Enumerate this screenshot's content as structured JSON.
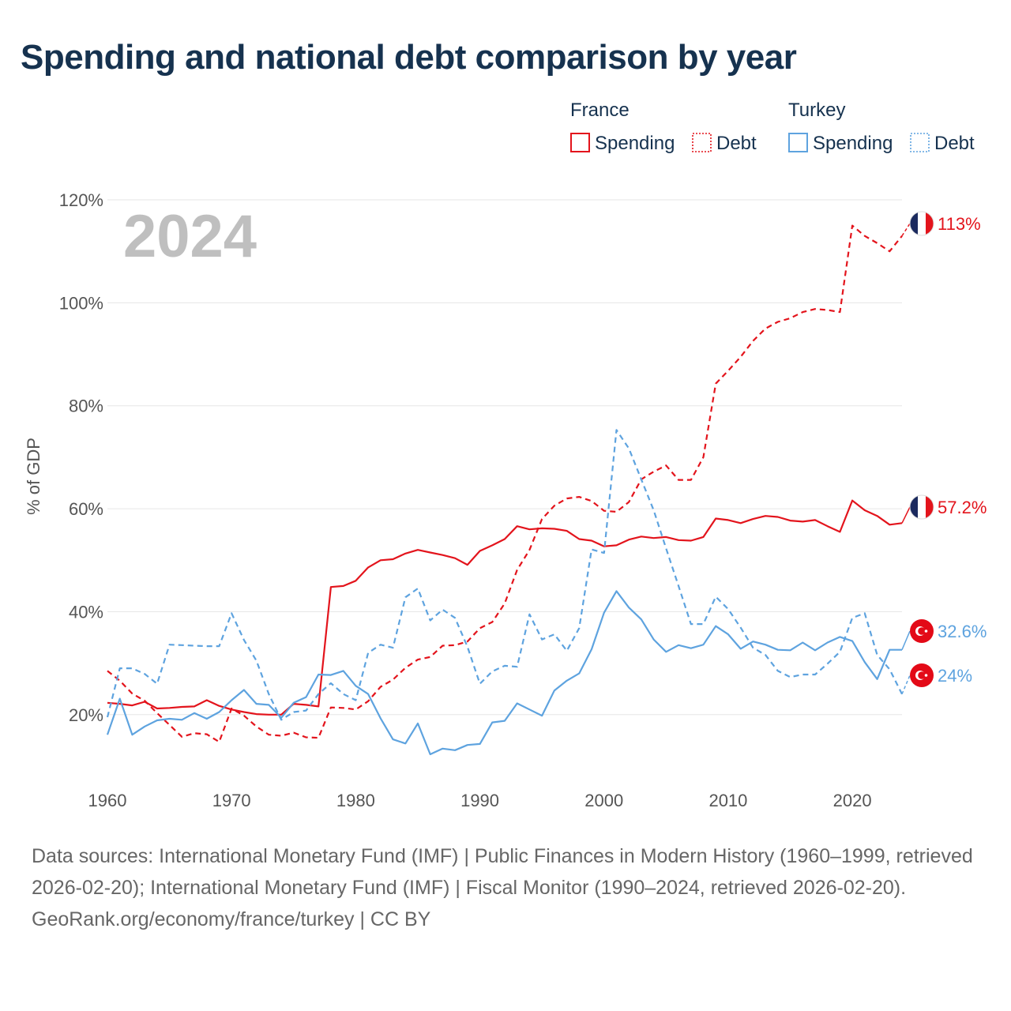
{
  "title": "Spending and national debt comparison by year",
  "colors": {
    "france": "#e3141c",
    "turkey": "#5ea3df",
    "title": "#16324f",
    "grid": "#e6e6e6",
    "axis_text": "#555555",
    "year_watermark": "#bfbfbf"
  },
  "legend": {
    "groups": [
      {
        "name": "France",
        "items": [
          "Spending",
          "Debt"
        ]
      },
      {
        "name": "Turkey",
        "items": [
          "Spending",
          "Debt"
        ]
      }
    ]
  },
  "year_label": "2024",
  "end_labels": {
    "france_debt": "113%",
    "france_spending": "57.2%",
    "turkey_spending": "32.6%",
    "turkey_debt": "24%"
  },
  "footer": {
    "sources": "Data sources: International Monetary Fund (IMF) | Public Finances in Modern History (1960–1999, retrieved 2026-02-20); International Monetary Fund (IMF) | Fiscal Monitor (1990–2024, retrieved 2026-02-20).",
    "credit": "GeoRank.org/economy/france/turkey | CC BY"
  },
  "chart_data": {
    "type": "line",
    "title": "Spending and national debt comparison by year",
    "ylabel": "% of GDP",
    "xlabel": "",
    "xlim": [
      1960,
      2024
    ],
    "ylim": [
      8,
      122
    ],
    "xticks": [
      1960,
      1970,
      1980,
      1990,
      2000,
      2010,
      2020
    ],
    "xtick_labels": [
      "1960",
      "1970",
      "1980",
      "1990",
      "2000",
      "2010",
      "2020"
    ],
    "yticks": [
      20,
      40,
      60,
      80,
      100,
      120
    ],
    "ytick_labels": [
      "20%",
      "40%",
      "60%",
      "80%",
      "100%",
      "120%"
    ],
    "grid": true,
    "legend_position": "top-right",
    "x_start": 1960,
    "series": [
      {
        "name": "France Spending",
        "country": "France",
        "dashed": false,
        "values": [
          22.3,
          22.1,
          21.8,
          22.5,
          21.2,
          21.3,
          21.5,
          21.6,
          22.8,
          21.7,
          21.0,
          20.5,
          20.1,
          20.0,
          20.0,
          22.1,
          21.9,
          21.6,
          44.8,
          45.0,
          46.0,
          48.6,
          50.0,
          50.2,
          51.3,
          52.0,
          51.5,
          51.0,
          50.4,
          49.1,
          51.8,
          52.9,
          54.1,
          56.6,
          56.0,
          56.2,
          56.1,
          55.7,
          54.1,
          53.8,
          52.7,
          52.9,
          54.0,
          54.6,
          54.3,
          54.5,
          53.9,
          53.8,
          54.5,
          58.1,
          57.8,
          57.2,
          58.0,
          58.6,
          58.4,
          57.7,
          57.5,
          57.8,
          56.6,
          55.5,
          61.6,
          59.7,
          58.6,
          56.9,
          57.2
        ]
      },
      {
        "name": "France Debt",
        "country": "France",
        "dashed": true,
        "values": [
          28.5,
          26.6,
          24.1,
          22.7,
          20.3,
          18.0,
          15.7,
          16.4,
          16.2,
          14.7,
          21.2,
          19.8,
          17.7,
          16.1,
          15.9,
          16.5,
          15.6,
          15.5,
          21.4,
          21.3,
          21.0,
          22.6,
          25.4,
          26.8,
          29.1,
          30.7,
          31.2,
          33.4,
          33.5,
          34.2,
          36.8,
          38.0,
          41.6,
          48.1,
          52.0,
          58.0,
          60.6,
          62.0,
          62.3,
          61.5,
          59.6,
          59.4,
          61.3,
          65.7,
          67.2,
          68.4,
          65.6,
          65.6,
          70.0,
          84.3,
          86.8,
          89.5,
          92.6,
          95.0,
          96.3,
          97.0,
          98.2,
          98.8,
          98.6,
          98.2,
          115.0,
          113.0,
          111.6,
          110.0,
          113.0
        ]
      },
      {
        "name": "Turkey Spending",
        "country": "Turkey",
        "dashed": false,
        "values": [
          16.1,
          23.1,
          16.1,
          17.7,
          18.9,
          19.2,
          19.0,
          20.3,
          19.2,
          20.5,
          22.8,
          24.8,
          22.1,
          21.9,
          19.4,
          22.3,
          23.4,
          27.8,
          27.7,
          28.5,
          25.6,
          24.0,
          19.3,
          15.2,
          14.4,
          18.3,
          12.3,
          13.4,
          13.1,
          14.1,
          14.3,
          18.5,
          18.8,
          22.2,
          21.0,
          19.8,
          24.7,
          26.6,
          28.0,
          32.7,
          39.8,
          44.0,
          40.8,
          38.5,
          34.6,
          32.2,
          33.5,
          32.9,
          33.6,
          37.2,
          35.6,
          32.8,
          34.2,
          33.6,
          32.6,
          32.5,
          34.0,
          32.5,
          34.0,
          35.1,
          34.3,
          30.2,
          26.9,
          32.6,
          32.6
        ]
      },
      {
        "name": "Turkey Debt",
        "country": "Turkey",
        "dashed": true,
        "values": [
          19.5,
          29.0,
          29.0,
          27.9,
          26.0,
          33.6,
          33.5,
          33.4,
          33.3,
          33.3,
          39.7,
          34.5,
          30.5,
          24.0,
          19.0,
          20.5,
          20.8,
          24.0,
          26.1,
          24.0,
          22.8,
          32.0,
          33.6,
          33.0,
          42.8,
          44.5,
          38.3,
          40.4,
          38.8,
          33.2,
          26.0,
          28.4,
          29.5,
          29.3,
          39.5,
          34.6,
          35.6,
          32.4,
          36.8,
          52.1,
          51.4,
          75.3,
          71.7,
          65.7,
          59.7,
          52.3,
          45.0,
          37.6,
          37.6,
          42.9,
          40.5,
          36.9,
          33.0,
          31.6,
          28.5,
          27.3,
          27.8,
          27.8,
          29.9,
          32.2,
          38.8,
          39.7,
          31.6,
          28.8,
          24.0
        ]
      }
    ]
  }
}
